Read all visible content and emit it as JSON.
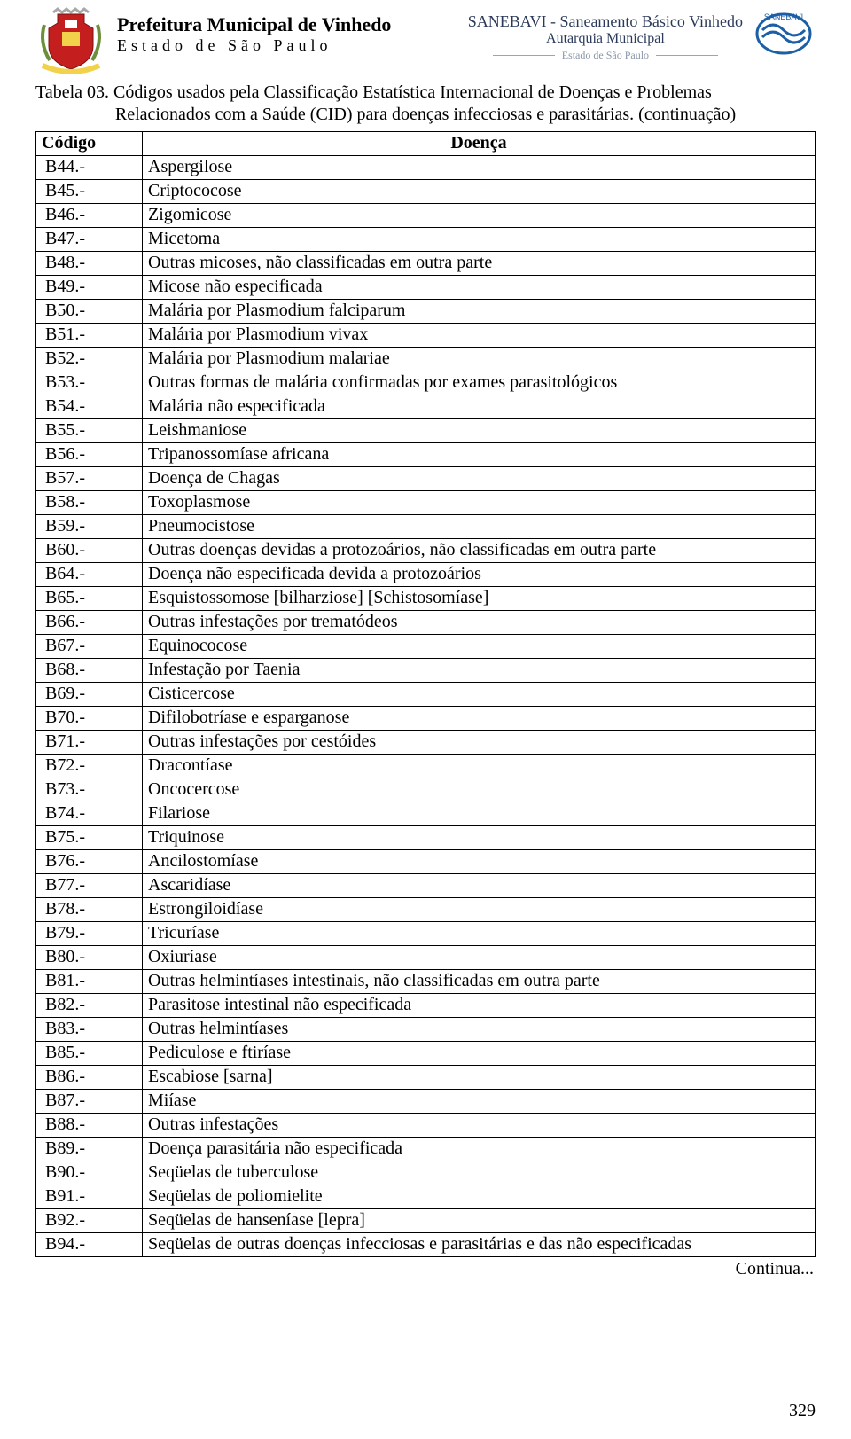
{
  "header": {
    "left": {
      "line1": "Prefeitura Municipal de Vinhedo",
      "line2": "Estado de São Paulo"
    },
    "right": {
      "line1": "SANEBAVI - Saneamento Básico Vinhedo",
      "line2": "Autarquia Municipal",
      "line3": "Estado de São Paulo"
    },
    "crest_colors": {
      "shield": "#c41e1e",
      "ribbon": "#f2d24b",
      "leaf": "#6b8f3a"
    },
    "sanebavi_colors": {
      "ring": "#1b5fa6",
      "wave": "#1b5fa6",
      "text": "#1b5fa6"
    }
  },
  "title": {
    "main": "Tabela 03. Códigos usados pela Classificação Estatística Internacional de Doenças e Problemas",
    "sub": "Relacionados com a Saúde (CID) para doenças infecciosas e parasitárias. (continuação)"
  },
  "table": {
    "columns": [
      "Código",
      "Doença"
    ],
    "rows": [
      [
        "B44.-",
        "Aspergilose"
      ],
      [
        "B45.-",
        "Criptococose"
      ],
      [
        "B46.-",
        "Zigomicose"
      ],
      [
        "B47.-",
        "Micetoma"
      ],
      [
        "B48.-",
        "Outras micoses, não classificadas em outra parte"
      ],
      [
        "B49.-",
        "Micose não especificada"
      ],
      [
        "B50.-",
        "Malária por Plasmodium falciparum"
      ],
      [
        "B51.-",
        "Malária por Plasmodium vivax"
      ],
      [
        "B52.-",
        "Malária por Plasmodium malariae"
      ],
      [
        "B53.-",
        "Outras formas de malária confirmadas por exames parasitológicos"
      ],
      [
        "B54.-",
        "Malária não especificada"
      ],
      [
        "B55.-",
        "Leishmaniose"
      ],
      [
        "B56.-",
        "Tripanossomíase africana"
      ],
      [
        "B57.-",
        "Doença de Chagas"
      ],
      [
        "B58.-",
        "Toxoplasmose"
      ],
      [
        "B59.-",
        "Pneumocistose"
      ],
      [
        "B60.-",
        "Outras doenças devidas a protozoários, não classificadas em outra parte"
      ],
      [
        "B64.-",
        "Doença não especificada devida a protozoários"
      ],
      [
        "B65.-",
        "Esquistossomose [bilharziose] [Schistosomíase]"
      ],
      [
        "B66.-",
        "Outras infestações por trematódeos"
      ],
      [
        "B67.-",
        "Equinococose"
      ],
      [
        "B68.-",
        "Infestação por Taenia"
      ],
      [
        "B69.-",
        "Cisticercose"
      ],
      [
        "B70.-",
        "Difilobotríase e esparganose"
      ],
      [
        "B71.-",
        "Outras infestações por cestóides"
      ],
      [
        "B72.-",
        "Dracontíase"
      ],
      [
        "B73.-",
        "Oncocercose"
      ],
      [
        "B74.-",
        "Filariose"
      ],
      [
        "B75.-",
        "Triquinose"
      ],
      [
        "B76.-",
        "Ancilostomíase"
      ],
      [
        "B77.-",
        "Ascaridíase"
      ],
      [
        "B78.-",
        "Estrongiloidíase"
      ],
      [
        "B79.-",
        "Tricuríase"
      ],
      [
        "B80.-",
        "Oxiuríase"
      ],
      [
        "B81.-",
        "Outras helmintíases intestinais, não classificadas em outra parte"
      ],
      [
        "B82.-",
        "Parasitose intestinal não especificada"
      ],
      [
        "B83.-",
        "Outras helmintíases"
      ],
      [
        "B85.-",
        "Pediculose e ftiríase"
      ],
      [
        "B86.-",
        "Escabiose [sarna]"
      ],
      [
        "B87.-",
        "Miíase"
      ],
      [
        "B88.-",
        "Outras infestações"
      ],
      [
        "B89.-",
        "Doença parasitária não especificada"
      ],
      [
        "B90.-",
        "Seqüelas de tuberculose"
      ],
      [
        "B91.-",
        "Seqüelas de poliomielite"
      ],
      [
        "B92.-",
        "Seqüelas de hanseníase [lepra]"
      ],
      [
        "B94.-",
        "Seqüelas de outras doenças infecciosas e parasitárias e das não especificadas"
      ]
    ]
  },
  "footer": {
    "continua": "Continua...",
    "pagenum": "329"
  }
}
